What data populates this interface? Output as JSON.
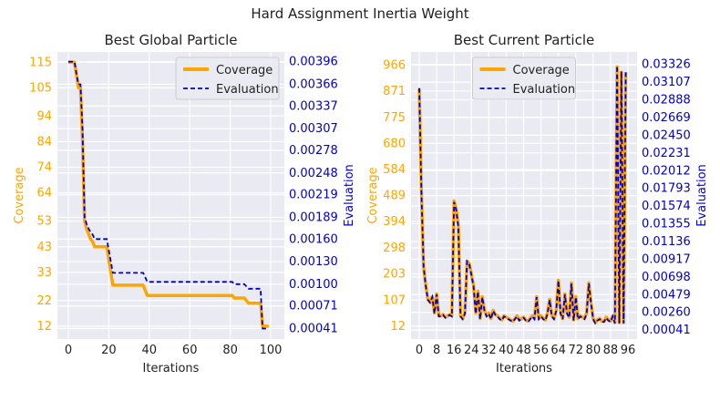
{
  "figure": {
    "suptitle": "Hard Assignment Inertia Weight"
  },
  "colors": {
    "coverage": "#FFA500",
    "evaluation": "#0000CC",
    "axes_bg": "#EAEAF2",
    "grid": "#FFFFFF",
    "text": "#222222"
  },
  "chart_data": [
    {
      "type": "line",
      "title": "Best Global Particle",
      "xlabel": "Iterations",
      "ylabel": "Coverage",
      "y2label": "Evaluation",
      "xlim": [
        -3,
        103
      ],
      "ylim": [
        7,
        119
      ],
      "y2lim": [
        0.00027,
        0.00409
      ],
      "xticks": [
        "0",
        "20",
        "40",
        "60",
        "80",
        "100"
      ],
      "yticks": [
        "12",
        "22",
        "33",
        "43",
        "53",
        "64",
        "74",
        "84",
        "94",
        "105",
        "115"
      ],
      "y2ticks": [
        "0.00041",
        "0.00071",
        "0.00100",
        "0.00130",
        "0.00160",
        "0.00189",
        "0.00219",
        "0.00248",
        "0.00278",
        "0.00307",
        "0.00337",
        "0.00366",
        "0.00396"
      ],
      "grid": true,
      "legend": "top-right",
      "series": [
        {
          "name": "Coverage",
          "style": "solid",
          "x": [
            0,
            3,
            4,
            5,
            6,
            7,
            8,
            9,
            10,
            11,
            12,
            13,
            14,
            15,
            16,
            17,
            18,
            19,
            20,
            21,
            22,
            23,
            24,
            25,
            26,
            27,
            28,
            29,
            30,
            31,
            32,
            33,
            34,
            35,
            36,
            37,
            38,
            39,
            40,
            41,
            42,
            43,
            44,
            45,
            46,
            47,
            48,
            49,
            50,
            51,
            52,
            53,
            54,
            55,
            56,
            57,
            58,
            59,
            60,
            61,
            62,
            63,
            64,
            65,
            66,
            67,
            68,
            69,
            70,
            71,
            72,
            73,
            74,
            75,
            76,
            77,
            78,
            79,
            80,
            81,
            82,
            83,
            84,
            85,
            86,
            87,
            88,
            89,
            90,
            91,
            92,
            93,
            94,
            95,
            96,
            97,
            98,
            99
          ],
          "values": [
            115,
            115,
            110,
            105,
            105,
            85,
            53,
            50,
            48,
            46,
            45,
            43,
            43,
            43,
            43,
            43,
            43,
            43,
            38,
            33,
            28,
            28,
            28,
            28,
            28,
            28,
            28,
            28,
            28,
            28,
            28,
            28,
            28,
            28,
            28,
            28,
            26,
            24,
            24,
            24,
            24,
            24,
            24,
            24,
            24,
            24,
            24,
            24,
            24,
            24,
            24,
            24,
            24,
            24,
            24,
            24,
            24,
            24,
            24,
            24,
            24,
            24,
            24,
            24,
            24,
            24,
            24,
            24,
            24,
            24,
            24,
            24,
            24,
            24,
            24,
            24,
            24,
            24,
            24,
            24,
            23,
            23,
            23,
            23,
            23,
            23,
            22,
            21,
            21,
            21,
            21,
            21,
            21,
            21,
            12,
            12,
            12,
            12
          ]
        },
        {
          "name": "Evaluation",
          "style": "dashed",
          "x": [
            0,
            3,
            4,
            5,
            6,
            7,
            8,
            9,
            10,
            11,
            12,
            13,
            14,
            15,
            16,
            17,
            18,
            19,
            20,
            21,
            22,
            23,
            24,
            25,
            26,
            27,
            28,
            29,
            30,
            31,
            32,
            33,
            34,
            35,
            36,
            37,
            38,
            39,
            40,
            41,
            42,
            43,
            44,
            45,
            46,
            47,
            48,
            49,
            50,
            51,
            52,
            53,
            54,
            55,
            56,
            57,
            58,
            59,
            60,
            61,
            62,
            63,
            64,
            65,
            66,
            67,
            68,
            69,
            70,
            71,
            72,
            73,
            74,
            75,
            76,
            77,
            78,
            79,
            80,
            81,
            82,
            83,
            84,
            85,
            86,
            87,
            88,
            89,
            90,
            91,
            92,
            93,
            94,
            95,
            96,
            97,
            98,
            99
          ],
          "values": [
            0.00396,
            0.00396,
            0.0038,
            0.00366,
            0.00366,
            0.00307,
            0.00189,
            0.0018,
            0.00174,
            0.00169,
            0.00166,
            0.0016,
            0.0016,
            0.0016,
            0.0016,
            0.0016,
            0.0016,
            0.0016,
            0.00145,
            0.0013,
            0.00115,
            0.00115,
            0.00115,
            0.00115,
            0.00115,
            0.00115,
            0.00115,
            0.00115,
            0.00115,
            0.00115,
            0.00115,
            0.00115,
            0.00115,
            0.00115,
            0.00115,
            0.00115,
            0.00109,
            0.00103,
            0.00103,
            0.00103,
            0.00103,
            0.00103,
            0.00103,
            0.00103,
            0.00103,
            0.00103,
            0.00103,
            0.00103,
            0.00103,
            0.00103,
            0.00103,
            0.00103,
            0.00103,
            0.00103,
            0.00103,
            0.00103,
            0.00103,
            0.00103,
            0.00103,
            0.00103,
            0.00103,
            0.00103,
            0.00103,
            0.00103,
            0.00103,
            0.00103,
            0.00103,
            0.00103,
            0.00103,
            0.00103,
            0.00103,
            0.00103,
            0.00103,
            0.00103,
            0.00103,
            0.00103,
            0.00103,
            0.00103,
            0.00103,
            0.00103,
            0.001,
            0.001,
            0.001,
            0.001,
            0.001,
            0.001,
            0.00097,
            0.00094,
            0.00094,
            0.00094,
            0.00094,
            0.00094,
            0.00094,
            0.00094,
            0.00041,
            0.00041,
            0.00041,
            0.00041
          ]
        }
      ]
    },
    {
      "type": "line",
      "title": "Best Current Particle",
      "xlabel": "Iterations",
      "ylabel": "Coverage",
      "y2label": "Evaluation",
      "xlim": [
        -2,
        99
      ],
      "ylim": [
        -35,
        1014
      ],
      "y2lim": [
        -0.0007,
        0.0348
      ],
      "xticks": [
        "0",
        "8",
        "16",
        "24",
        "32",
        "40",
        "48",
        "56",
        "64",
        "72",
        "80",
        "88",
        "96"
      ],
      "yticks": [
        "12",
        "107",
        "203",
        "298",
        "394",
        "489",
        "584",
        "680",
        "775",
        "871",
        "966"
      ],
      "y2ticks": [
        "0.00041",
        "0.00260",
        "0.00479",
        "0.00698",
        "0.00917",
        "0.01136",
        "0.01355",
        "0.01574",
        "0.01793",
        "0.02012",
        "0.02231",
        "0.02450",
        "0.02669",
        "0.02888",
        "0.03107",
        "0.03326"
      ],
      "grid": true,
      "legend": "top-center",
      "series": [
        {
          "name": "Coverage",
          "style": "solid",
          "x": [
            0,
            1,
            2,
            3,
            4,
            5,
            6,
            7,
            8,
            9,
            10,
            11,
            12,
            13,
            14,
            15,
            16,
            17,
            18,
            19,
            20,
            21,
            22,
            23,
            24,
            25,
            26,
            27,
            28,
            29,
            30,
            31,
            32,
            33,
            34,
            35,
            36,
            37,
            38,
            39,
            40,
            41,
            42,
            43,
            44,
            45,
            46,
            47,
            48,
            49,
            50,
            51,
            52,
            53,
            54,
            55,
            56,
            57,
            58,
            59,
            60,
            61,
            62,
            63,
            64,
            65,
            66,
            67,
            68,
            69,
            70,
            71,
            72,
            73,
            74,
            75,
            76,
            77,
            78,
            79,
            80,
            81,
            82,
            83,
            84,
            85,
            86,
            87,
            88,
            89,
            90,
            91,
            92,
            93,
            94,
            95
          ],
          "values": [
            880,
            500,
            230,
            160,
            110,
            100,
            120,
            60,
            130,
            50,
            50,
            55,
            45,
            50,
            55,
            50,
            470,
            440,
            380,
            50,
            40,
            60,
            250,
            240,
            200,
            160,
            60,
            140,
            40,
            120,
            70,
            50,
            60,
            40,
            70,
            55,
            50,
            40,
            35,
            50,
            45,
            40,
            35,
            30,
            40,
            50,
            35,
            40,
            45,
            35,
            30,
            40,
            50,
            40,
            120,
            40,
            50,
            40,
            35,
            60,
            110,
            50,
            40,
            70,
            180,
            60,
            40,
            130,
            60,
            45,
            170,
            35,
            120,
            40,
            50,
            45,
            40,
            60,
            170,
            100,
            40,
            25,
            35,
            40,
            30,
            30,
            45,
            35,
            30,
            50,
            25,
            960,
            25,
            940,
            25,
            940
          ]
        },
        {
          "name": "Evaluation",
          "style": "dashed",
          "x": [
            0,
            1,
            2,
            3,
            4,
            5,
            6,
            7,
            8,
            9,
            10,
            11,
            12,
            13,
            14,
            15,
            16,
            17,
            18,
            19,
            20,
            21,
            22,
            23,
            24,
            25,
            26,
            27,
            28,
            29,
            30,
            31,
            32,
            33,
            34,
            35,
            36,
            37,
            38,
            39,
            40,
            41,
            42,
            43,
            44,
            45,
            46,
            47,
            48,
            49,
            50,
            51,
            52,
            53,
            54,
            55,
            56,
            57,
            58,
            59,
            60,
            61,
            62,
            63,
            64,
            65,
            66,
            67,
            68,
            69,
            70,
            71,
            72,
            73,
            74,
            75,
            76,
            77,
            78,
            79,
            80,
            81,
            82,
            83,
            84,
            85,
            86,
            87,
            88,
            89,
            90,
            91,
            92,
            93,
            94,
            95
          ],
          "values": [
            0.03033,
            0.0174,
            0.00822,
            0.00584,
            0.00414,
            0.0038,
            0.00448,
            0.00244,
            0.00482,
            0.0021,
            0.0021,
            0.00227,
            0.00193,
            0.0021,
            0.00227,
            0.0021,
            0.01625,
            0.01523,
            0.01319,
            0.0021,
            0.00176,
            0.00244,
            0.0089,
            0.00856,
            0.0072,
            0.00584,
            0.00244,
            0.00516,
            0.00176,
            0.00448,
            0.00278,
            0.0021,
            0.00244,
            0.00176,
            0.00278,
            0.00227,
            0.0021,
            0.00176,
            0.00159,
            0.0021,
            0.00193,
            0.00176,
            0.00159,
            0.00142,
            0.00176,
            0.0021,
            0.00159,
            0.00176,
            0.00193,
            0.00159,
            0.00142,
            0.00176,
            0.0021,
            0.00176,
            0.00448,
            0.00176,
            0.0021,
            0.00176,
            0.00159,
            0.00244,
            0.00414,
            0.0021,
            0.00176,
            0.00278,
            0.00652,
            0.00244,
            0.00176,
            0.00482,
            0.00244,
            0.00193,
            0.00618,
            0.00159,
            0.00448,
            0.00176,
            0.0021,
            0.00193,
            0.00176,
            0.00244,
            0.00618,
            0.0038,
            0.00176,
            0.00125,
            0.00159,
            0.00176,
            0.00142,
            0.00142,
            0.00193,
            0.00159,
            0.00142,
            0.0021,
            0.00125,
            0.03308,
            0.00125,
            0.0324,
            0.00125,
            0.0324
          ]
        }
      ]
    }
  ]
}
